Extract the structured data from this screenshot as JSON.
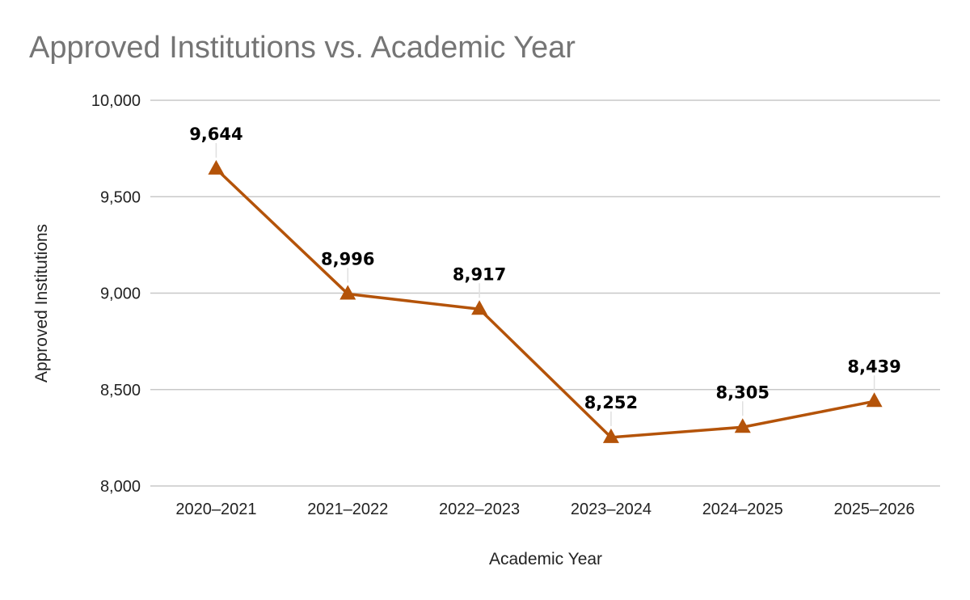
{
  "chart_data": {
    "type": "line",
    "title": "Approved Institutions vs. Academic Year",
    "xlabel": "Academic Year",
    "ylabel": "Approved Institutions",
    "categories": [
      "2020–2021",
      "2021–2022",
      "2022–2023",
      "2023–2024",
      "2024–2025",
      "2025–2026"
    ],
    "series": [
      {
        "values": [
          9644,
          8996,
          8917,
          8252,
          8305,
          8439
        ],
        "labels": [
          "9,644",
          "8,996",
          "8,917",
          "8,252",
          "8,305",
          "8,439"
        ],
        "color": "#b45309",
        "marker": "triangle"
      }
    ],
    "ylim": [
      8000,
      10000
    ],
    "yticks": [
      8000,
      8500,
      9000,
      9500,
      10000
    ],
    "ytick_labels": [
      "8,000",
      "8,500",
      "9,000",
      "9,500",
      "10,000"
    ],
    "grid": true,
    "legend": "none",
    "gridline_color": "#c8c8c8"
  }
}
